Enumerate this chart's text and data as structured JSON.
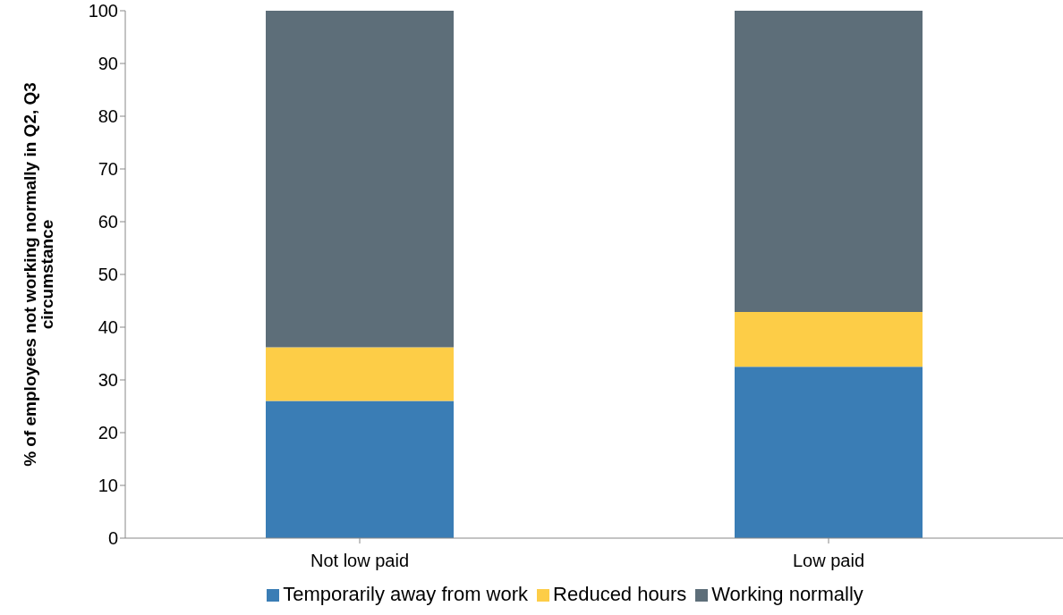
{
  "chart_data": {
    "type": "bar",
    "stacked": true,
    "ylabel": "% of employees not working normally in Q2, Q3 circumstance",
    "categories": [
      "Not low paid",
      "Low paid"
    ],
    "series": [
      {
        "name": "Temporarily away from work",
        "color": "#3a7db5",
        "values": [
          26,
          32.5
        ]
      },
      {
        "name": "Reduced hours",
        "color": "#fdcd47",
        "values": [
          10.2,
          10.4
        ]
      },
      {
        "name": "Working normally",
        "color": "#5d6e79",
        "values": [
          63.8,
          57.1
        ]
      }
    ],
    "ylim": [
      0,
      100
    ],
    "yticks": [
      0,
      10,
      20,
      30,
      40,
      50,
      60,
      70,
      80,
      90,
      100
    ],
    "grid": false,
    "legend": "bottom"
  }
}
